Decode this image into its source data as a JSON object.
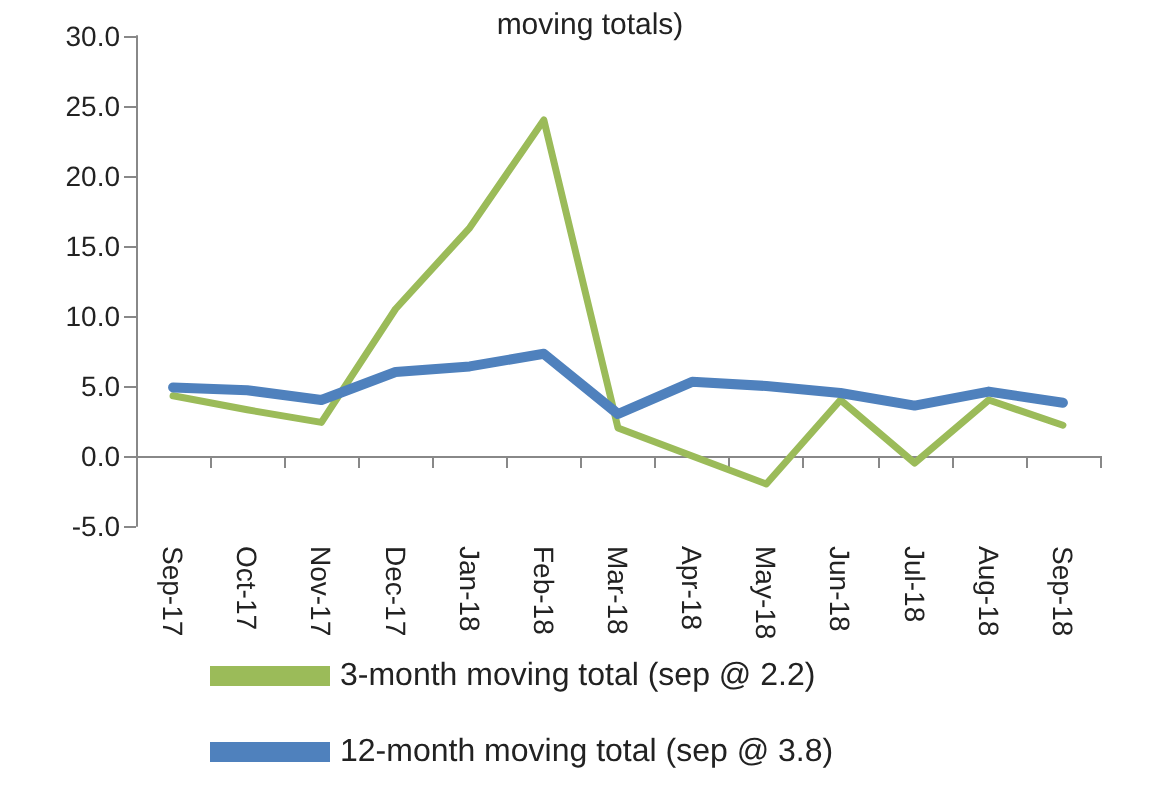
{
  "chart_data": {
    "type": "line",
    "title": "moving totals)",
    "categories": [
      "Sep-17",
      "Oct-17",
      "Nov-17",
      "Dec-17",
      "Jan-18",
      "Feb-18",
      "Mar-18",
      "Apr-18",
      "May-18",
      "Jun-18",
      "Jul-18",
      "Aug-18",
      "Sep-18"
    ],
    "series": [
      {
        "name": "3-month moving total (sep @ 2.2)",
        "color": "#9bbb59",
        "values": [
          4.3,
          3.3,
          2.4,
          10.5,
          16.3,
          24.0,
          2.0,
          0.0,
          -2.0,
          4.0,
          -0.5,
          4.0,
          2.2
        ]
      },
      {
        "name": "12-month moving total (sep @ 3.8)",
        "color": "#4f81bd",
        "values": [
          4.9,
          4.7,
          4.0,
          6.0,
          6.4,
          7.3,
          3.0,
          5.3,
          5.0,
          4.5,
          3.6,
          4.6,
          3.8
        ]
      }
    ],
    "ylim": [
      -5,
      30
    ],
    "yticks": [
      {
        "value": -5,
        "label": "-5.0"
      },
      {
        "value": 0,
        "label": "0.0"
      },
      {
        "value": 5,
        "label": "5.0"
      },
      {
        "value": 10,
        "label": "10.0"
      },
      {
        "value": 15,
        "label": "15.0"
      },
      {
        "value": 20,
        "label": "20.0"
      },
      {
        "value": 25,
        "label": "25.0"
      },
      {
        "value": 30,
        "label": "30.0"
      }
    ],
    "legend": "bottom",
    "marker": "none"
  }
}
